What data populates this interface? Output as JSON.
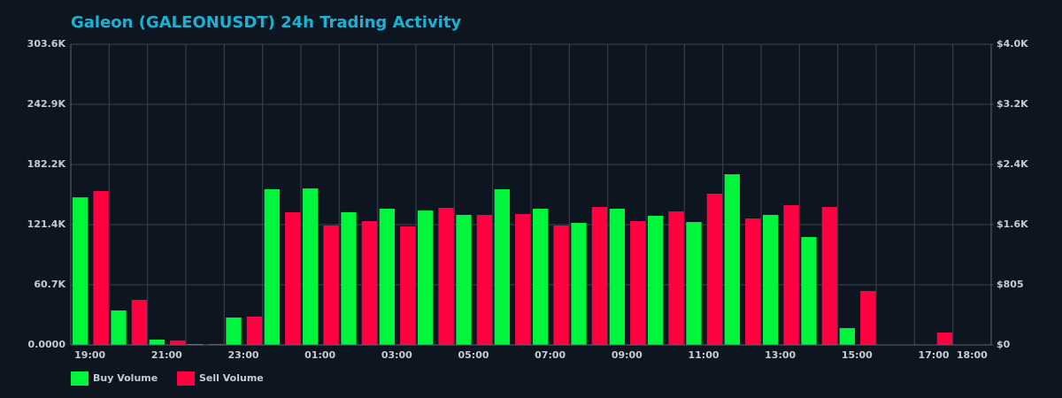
{
  "chart_data": {
    "type": "bar",
    "title": "Galeon (GALEONUSDT) 24h Trading Activity",
    "categories": [
      "19:00",
      null,
      "21:00",
      null,
      "23:00",
      null,
      "01:00",
      null,
      "03:00",
      null,
      "05:00",
      null,
      "07:00",
      null,
      "09:00",
      null,
      "11:00",
      null,
      "13:00",
      null,
      "15:00",
      null,
      "17:00",
      "18:00"
    ],
    "series": [
      {
        "name": "Buy Volume",
        "color": "#00f53c",
        "values": [
          149000,
          34800,
          5400,
          800,
          27700,
          157200,
          158000,
          134000,
          137500,
          135700,
          131300,
          157200,
          137500,
          123200,
          137500,
          130400,
          124100,
          172300,
          131300,
          108900,
          17000,
          300,
          300,
          300
        ]
      },
      {
        "name": "Sell Volume",
        "color": "#ff0040",
        "values": [
          155400,
          45500,
          4500,
          1000,
          28600,
          134000,
          120600,
          125000,
          119700,
          138400,
          131300,
          132200,
          120600,
          139300,
          125000,
          134800,
          152700,
          127700,
          141100,
          139300,
          54500,
          200,
          12500,
          200
        ]
      }
    ],
    "ylim": [
      0,
      303600
    ],
    "yticks": [
      {
        "value": 0,
        "label": "0.0000"
      },
      {
        "value": 60720,
        "label": "60.7K"
      },
      {
        "value": 121440,
        "label": "121.4K"
      },
      {
        "value": 182160,
        "label": "182.2K"
      },
      {
        "value": 242880,
        "label": "242.9K"
      },
      {
        "value": 303600,
        "label": "303.6K"
      }
    ],
    "y2lim": [
      0,
      4025
    ],
    "y2ticks": [
      {
        "value": 0,
        "label": "$0"
      },
      {
        "value": 805,
        "label": "$805"
      },
      {
        "value": 1610,
        "label": "$1.6K"
      },
      {
        "value": 2415,
        "label": "$2.4K"
      },
      {
        "value": 3220,
        "label": "$3.2K"
      },
      {
        "value": 4025,
        "label": "$4.0K"
      }
    ],
    "grid": true,
    "legend": "bottom-left"
  }
}
